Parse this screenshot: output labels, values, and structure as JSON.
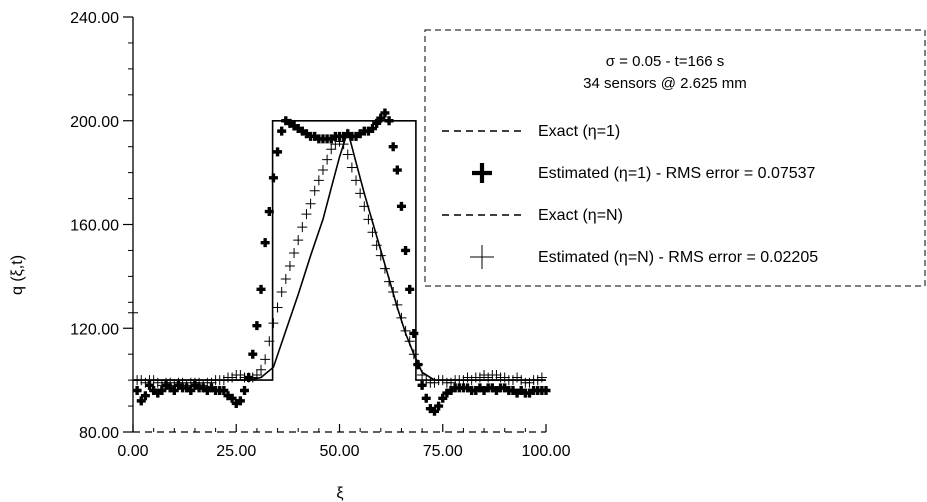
{
  "chart_data": {
    "type": "line",
    "title": "",
    "xlabel": "ξ",
    "ylabel": "q (ξ,t)",
    "xlim": [
      0,
      100
    ],
    "ylim": [
      80,
      240
    ],
    "xticks": [
      "0.00",
      "25.00",
      "50.00",
      "75.00",
      "100.00"
    ],
    "yticks": [
      "80.00",
      "120.00",
      "160.00",
      "200.00",
      "240.00"
    ],
    "annotation": {
      "line1": "σ = 0.05 - t=166 s",
      "line2": "34 sensors @ 2.625 mm"
    },
    "legend_position": "top-right",
    "series": [
      {
        "name": "Exact (η=1)",
        "style": "dashed-line",
        "x": [
          0,
          33.8,
          33.8,
          68.5,
          68.5,
          100
        ],
        "y": [
          100,
          100,
          200,
          200,
          100,
          100
        ]
      },
      {
        "name": "Estimated (η=1) - RMS error = 0.07537",
        "style": "bold-plus",
        "x": [
          1,
          2,
          3,
          4,
          5,
          6,
          7,
          8,
          9,
          10,
          11,
          12,
          13,
          14,
          15,
          16,
          17,
          18,
          19,
          20,
          21,
          22,
          23,
          24,
          25,
          26,
          27,
          28,
          29,
          30,
          31,
          32,
          33,
          34,
          35,
          36,
          37,
          38,
          39,
          40,
          41,
          42,
          43,
          44,
          45,
          46,
          47,
          48,
          49,
          50,
          51,
          52,
          53,
          54,
          55,
          56,
          57,
          58,
          59,
          60,
          61,
          62,
          63,
          64,
          65,
          66,
          67,
          68,
          69,
          70,
          71,
          72,
          73,
          74,
          75,
          76,
          77,
          78,
          79,
          80,
          81,
          82,
          83,
          84,
          85,
          86,
          87,
          88,
          89,
          90,
          91,
          92,
          93,
          94,
          95,
          96,
          97,
          98,
          99,
          100
        ],
        "y": [
          96,
          92,
          94,
          98,
          96,
          95,
          96,
          98,
          97,
          96,
          98,
          97,
          97,
          96,
          98,
          97,
          97,
          96,
          97,
          96,
          96,
          96,
          94,
          93,
          91,
          92,
          96,
          101,
          110,
          121,
          135,
          153,
          165,
          178,
          188,
          196,
          200,
          199,
          198,
          197,
          196,
          195,
          194,
          194,
          193,
          193,
          193,
          193,
          194,
          194,
          194,
          195,
          194,
          194,
          195,
          196,
          196,
          197,
          199,
          201,
          203,
          200,
          190,
          181,
          167,
          150,
          135,
          118,
          106,
          98,
          93,
          89,
          88,
          90,
          93,
          95,
          96,
          97,
          97,
          97,
          97,
          96,
          96,
          97,
          96,
          97,
          97,
          96,
          97,
          97,
          96,
          96,
          95,
          96,
          95,
          95,
          96,
          96,
          96,
          96
        ]
      },
      {
        "name": "Exact (η=N)",
        "style": "solid-line",
        "x": [
          0,
          28,
          31,
          34,
          37,
          40,
          43,
          46,
          48,
          50,
          52,
          54,
          56,
          58,
          60,
          62,
          64,
          66,
          68,
          70,
          73,
          100
        ],
        "y": [
          100,
          100,
          101,
          105,
          119,
          133,
          148,
          162,
          174,
          186,
          196,
          184,
          172,
          161,
          150,
          139,
          128,
          118,
          110,
          103,
          100,
          100
        ]
      },
      {
        "name": "Estimated (η=N) - RMS error = 0.02205",
        "style": "thin-plus",
        "x": [
          0,
          1,
          2,
          3,
          4,
          5,
          6,
          7,
          8,
          9,
          10,
          11,
          12,
          13,
          14,
          15,
          16,
          17,
          18,
          19,
          20,
          21,
          22,
          23,
          24,
          25,
          26,
          27,
          28,
          29,
          30,
          31,
          32,
          33,
          34,
          35,
          36,
          37,
          38,
          39,
          40,
          41,
          42,
          43,
          44,
          45,
          46,
          47,
          48,
          49,
          50,
          51,
          52,
          53,
          54,
          55,
          56,
          57,
          58,
          59,
          60,
          61,
          62,
          63,
          64,
          65,
          66,
          67,
          68,
          69,
          70,
          71,
          72,
          73,
          74,
          75,
          76,
          77,
          78,
          79,
          80,
          81,
          82,
          83,
          84,
          85,
          86,
          87,
          88,
          89,
          90,
          91,
          92,
          93,
          94,
          95,
          96,
          97,
          98,
          99
        ],
        "y": [
          126,
          100,
          100,
          99,
          100,
          100,
          99,
          98,
          99,
          99,
          98,
          99,
          99,
          98,
          99,
          99,
          99,
          98,
          99,
          99,
          100,
          100,
          100,
          101,
          101,
          102,
          102,
          101,
          101,
          101,
          102,
          104,
          108,
          115,
          122,
          128,
          134,
          139,
          144,
          149,
          154,
          159,
          164,
          168,
          173,
          177,
          181,
          185,
          189,
          191,
          192,
          191,
          187,
          182,
          177,
          172,
          167,
          162,
          157,
          152,
          148,
          143,
          138,
          134,
          129,
          124,
          119,
          115,
          110,
          106,
          102,
          100,
          99,
          99,
          100,
          100,
          99,
          99,
          100,
          100,
          100,
          101,
          100,
          101,
          101,
          102,
          101,
          102,
          102,
          101,
          101,
          100,
          100,
          101,
          100,
          99,
          99,
          100,
          100,
          101
        ]
      }
    ]
  }
}
